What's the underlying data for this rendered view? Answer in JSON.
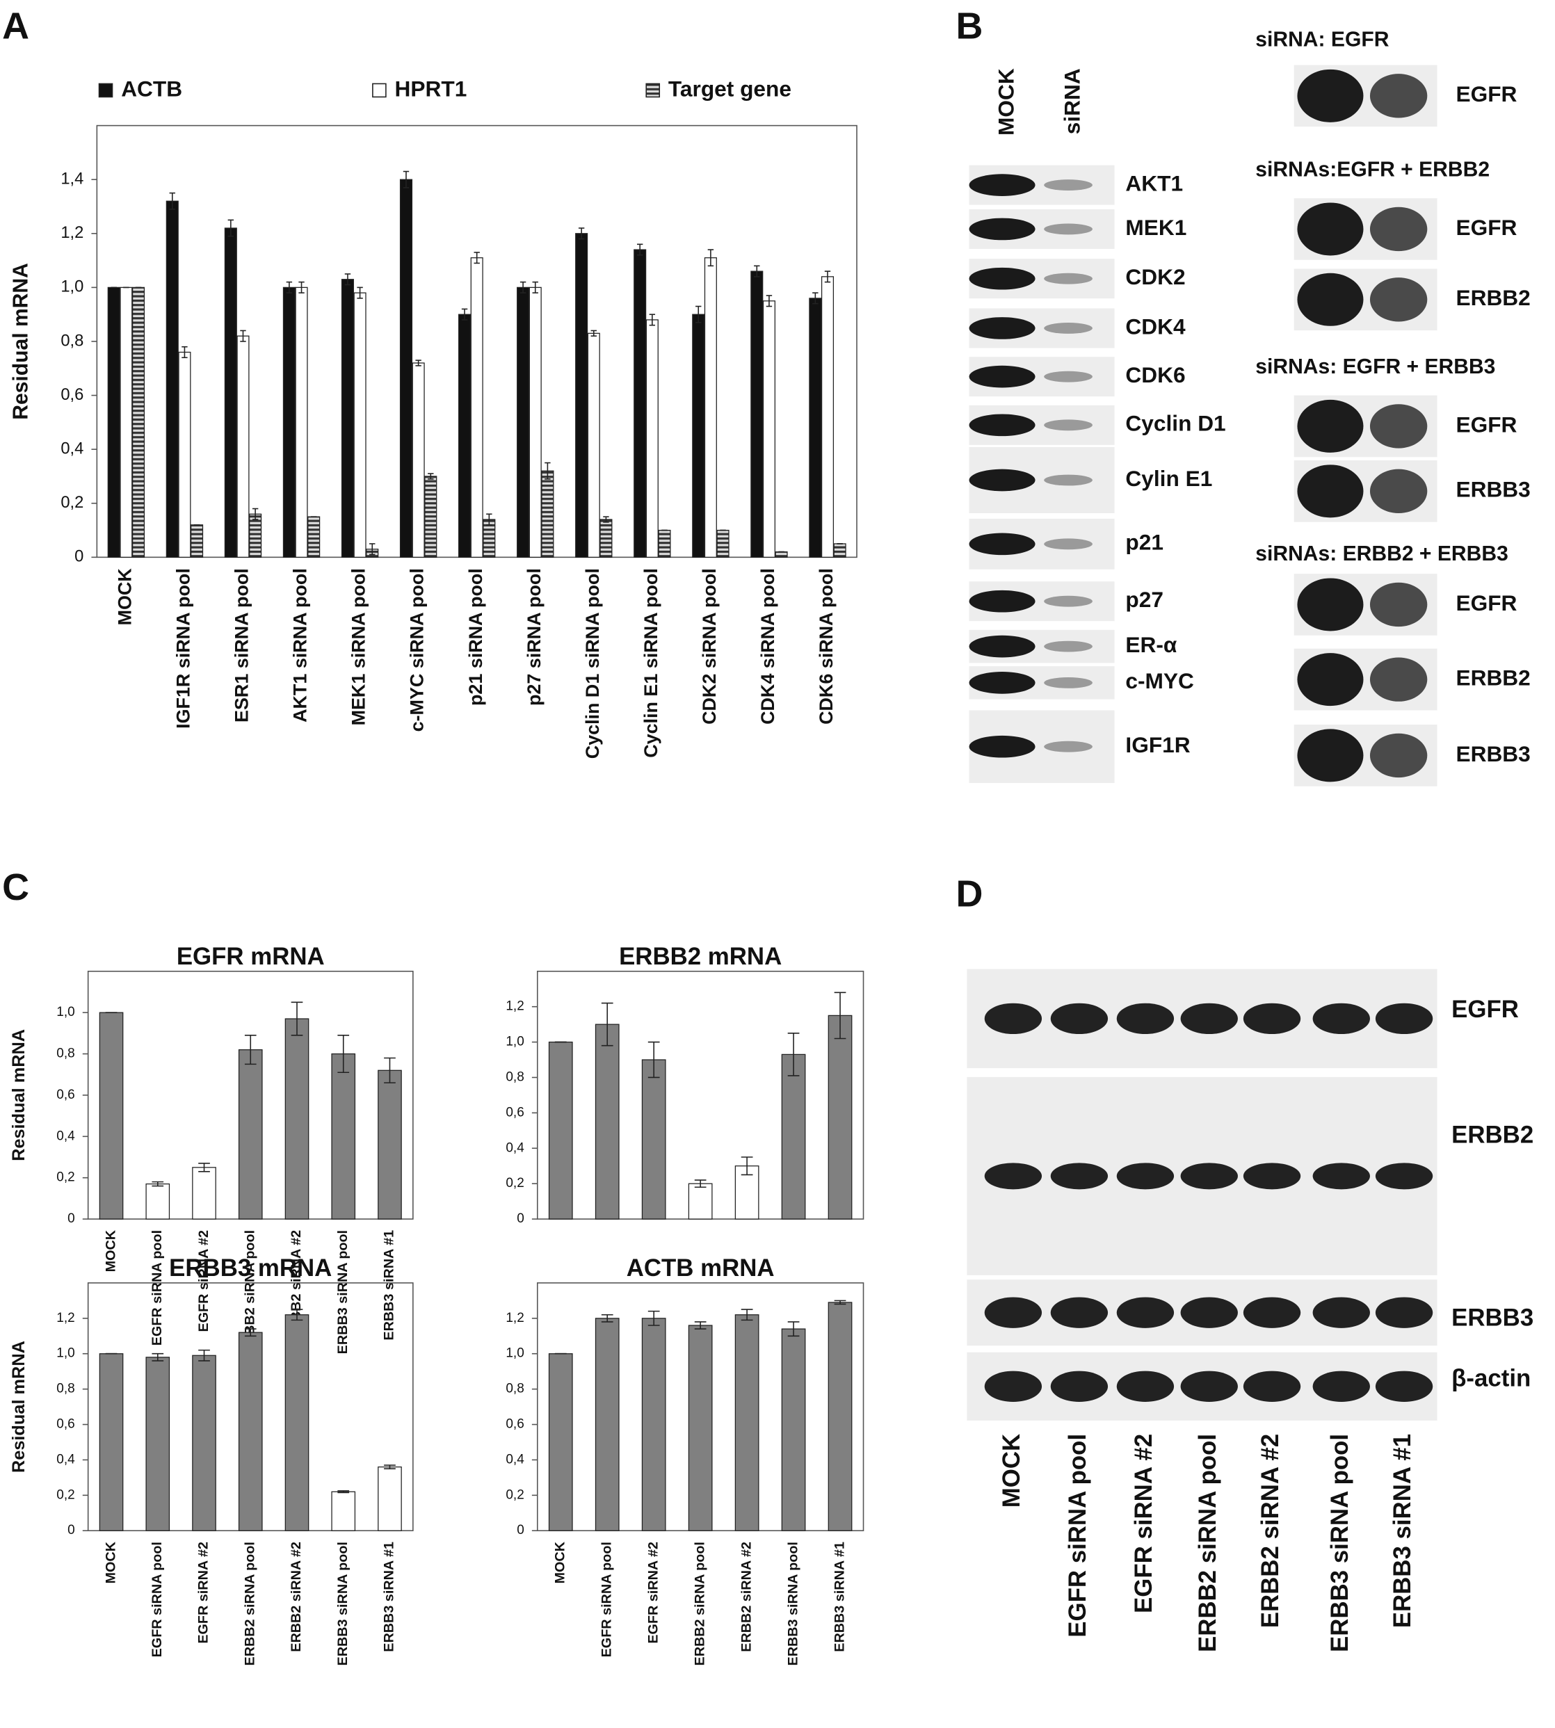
{
  "panels": [
    "A",
    "B",
    "C",
    "D"
  ],
  "chart_data": [
    {
      "type": "bar",
      "ylabel": "Residual mRNA",
      "ylim": [
        0,
        1.6
      ],
      "yticks": [
        0,
        {
          "value": 0.2,
          "label": "0,2"
        },
        {
          "value": 0.4,
          "label": "0,4"
        },
        {
          "value": 0.6,
          "label": "0,6"
        },
        {
          "value": 0.8,
          "label": "0,8"
        },
        {
          "value": 1.0,
          "label": "1,0"
        },
        {
          "value": 1.2,
          "label": "1,2"
        },
        {
          "value": 1.4,
          "label": "1,4"
        }
      ],
      "legend_position": "top",
      "categories": [
        "MOCK",
        "IGF1R siRNA pool",
        "ESR1 siRNA pool",
        "AKT1 siRNA pool",
        "MEK1 siRNA pool",
        "c-MYC siRNA pool",
        "p21 siRNA pool",
        "p27 siRNA pool",
        "Cyclin D1 siRNA pool",
        "Cyclin E1 siRNA pool",
        "CDK2 siRNA pool",
        "CDK4 siRNA pool",
        "CDK6 siRNA pool"
      ],
      "series": [
        {
          "name": "ACTB",
          "color": "#111111",
          "values": [
            1.0,
            1.32,
            1.22,
            1.0,
            1.03,
            1.4,
            0.9,
            1.0,
            1.2,
            1.14,
            0.9,
            1.06,
            0.96
          ],
          "errors": [
            0,
            0.03,
            0.03,
            0.02,
            0.02,
            0.03,
            0.02,
            0.02,
            0.02,
            0.02,
            0.03,
            0.02,
            0.02
          ]
        },
        {
          "name": "HPRT1",
          "color": "#ffffff",
          "values": [
            1.0,
            0.76,
            0.82,
            1.0,
            0.98,
            0.72,
            1.11,
            1.0,
            0.83,
            0.88,
            1.11,
            0.95,
            1.04
          ],
          "errors": [
            0,
            0.02,
            0.02,
            0.02,
            0.02,
            0.01,
            0.02,
            0.02,
            0.01,
            0.02,
            0.03,
            0.02,
            0.02
          ]
        },
        {
          "name": "Target gene",
          "color": "#333333",
          "hatch": "horizontal",
          "values": [
            1.0,
            0.12,
            0.16,
            0.15,
            0.03,
            0.3,
            0.14,
            0.32,
            0.14,
            0.1,
            0.1,
            0.02,
            0.05
          ],
          "errors": [
            0,
            0,
            0.02,
            0,
            0.02,
            0.01,
            0.02,
            0.03,
            0.01,
            0,
            0,
            0,
            0
          ]
        }
      ]
    },
    {
      "type": "bar",
      "title": "EGFR mRNA",
      "ylabel": "Residual mRNA",
      "ylim": [
        0,
        1.2
      ],
      "yticks": [
        0,
        {
          "value": 0.2,
          "label": "0,2"
        },
        {
          "value": 0.4,
          "label": "0,4"
        },
        {
          "value": 0.6,
          "label": "0,6"
        },
        {
          "value": 0.8,
          "label": "0,8"
        },
        {
          "value": 1.0,
          "label": "1,0"
        }
      ],
      "categories": [
        "MOCK",
        "EGFR siRNA pool",
        "EGFR siRNA #2",
        "ERBB2 siRNA pool",
        "ERBB2 siRNA #2",
        "ERBB3 siRNA pool",
        "ERBB3 siRNA #1"
      ],
      "values": [
        1.0,
        0.17,
        0.25,
        0.82,
        0.97,
        0.8,
        0.72
      ],
      "errors": [
        0,
        0.01,
        0.02,
        0.07,
        0.08,
        0.09,
        0.06
      ],
      "colors": [
        "#808080",
        "#ffffff",
        "#ffffff",
        "#808080",
        "#808080",
        "#808080",
        "#808080"
      ]
    },
    {
      "type": "bar",
      "title": "ERBB2 mRNA",
      "ylim": [
        0,
        1.4
      ],
      "yticks": [
        0,
        {
          "value": 0.2,
          "label": "0,2"
        },
        {
          "value": 0.4,
          "label": "0,4"
        },
        {
          "value": 0.6,
          "label": "0,6"
        },
        {
          "value": 0.8,
          "label": "0,8"
        },
        {
          "value": 1.0,
          "label": "1,0"
        },
        {
          "value": 1.2,
          "label": "1,2"
        }
      ],
      "categories": [
        null,
        null,
        null,
        null,
        null,
        null,
        null
      ],
      "values": [
        1.0,
        1.1,
        0.9,
        0.2,
        0.3,
        0.93,
        1.15
      ],
      "errors": [
        0,
        0.12,
        0.1,
        0.02,
        0.05,
        0.12,
        0.13
      ],
      "colors": [
        "#808080",
        "#808080",
        "#808080",
        "#ffffff",
        "#ffffff",
        "#808080",
        "#808080"
      ]
    },
    {
      "type": "bar",
      "title": "ERBB3 mRNA",
      "ylabel": "Residual mRNA",
      "ylim": [
        0,
        1.4
      ],
      "yticks": [
        0,
        {
          "value": 0.2,
          "label": "0,2"
        },
        {
          "value": 0.4,
          "label": "0,4"
        },
        {
          "value": 0.6,
          "label": "0,6"
        },
        {
          "value": 0.8,
          "label": "0,8"
        },
        {
          "value": 1.0,
          "label": "1,0"
        },
        {
          "value": 1.2,
          "label": "1,2"
        }
      ],
      "categories": [
        "MOCK",
        "EGFR siRNA pool",
        "EGFR siRNA #2",
        "ERBB2 siRNA pool",
        "ERBB2 siRNA #2",
        "ERBB3 siRNA pool",
        "ERBB3 siRNA #1"
      ],
      "values": [
        1.0,
        0.98,
        0.99,
        1.12,
        1.22,
        0.22,
        0.36
      ],
      "errors": [
        0,
        0.02,
        0.03,
        0.02,
        0.03,
        0.005,
        0.01
      ],
      "colors": [
        "#808080",
        "#808080",
        "#808080",
        "#808080",
        "#808080",
        "#ffffff",
        "#ffffff"
      ]
    },
    {
      "type": "bar",
      "title": "ACTB mRNA",
      "ylim": [
        0,
        1.4
      ],
      "yticks": [
        0,
        {
          "value": 0.2,
          "label": "0,2"
        },
        {
          "value": 0.4,
          "label": "0,4"
        },
        {
          "value": 0.6,
          "label": "0,6"
        },
        {
          "value": 0.8,
          "label": "0,8"
        },
        {
          "value": 1.0,
          "label": "1,0"
        },
        {
          "value": 1.2,
          "label": "1,2"
        }
      ],
      "categories": [
        "MOCK",
        "EGFR siRNA pool",
        "EGFR siRNA #2",
        "ERBB2 siRNA pool",
        "ERBB2 siRNA #2",
        "ERBB3 siRNA pool",
        "ERBB3 siRNA #1"
      ],
      "values": [
        1.0,
        1.2,
        1.2,
        1.16,
        1.22,
        1.14,
        1.29
      ],
      "errors": [
        0,
        0.02,
        0.04,
        0.02,
        0.03,
        0.04,
        0.01
      ],
      "colors": [
        "#808080",
        "#808080",
        "#808080",
        "#808080",
        "#808080",
        "#808080",
        "#808080"
      ]
    }
  ],
  "panel_b": {
    "lanes": [
      "MOCK",
      "siRNA"
    ],
    "left_blots": [
      "AKT1",
      "MEK1",
      "CDK2",
      "CDK4",
      "CDK6",
      "Cyclin D1",
      "Cylin E1",
      "p21",
      "p27",
      "ER-α",
      "c-MYC",
      "IGF1R"
    ],
    "groups": [
      {
        "title": "siRNA: EGFR",
        "blots": [
          "EGFR"
        ]
      },
      {
        "title": "siRNAs:EGFR + ERBB2",
        "blots": [
          "EGFR",
          "ERBB2"
        ]
      },
      {
        "title": "siRNAs: EGFR + ERBB3",
        "blots": [
          "EGFR",
          "ERBB3"
        ]
      },
      {
        "title": "siRNAs: ERBB2 + ERBB3",
        "blots": [
          "EGFR",
          "ERBB2",
          "ERBB3"
        ]
      }
    ]
  },
  "panel_d": {
    "blots": [
      "EGFR",
      "ERBB2",
      "ERBB3",
      "β-actin"
    ],
    "lanes": [
      "MOCK",
      "EGFR siRNA pool",
      "EGFR siRNA #2",
      "ERBB2 siRNA pool",
      "ERBB2 siRNA #2",
      "ERBB3 siRNA pool",
      "ERBB3 siRNA #1"
    ]
  }
}
